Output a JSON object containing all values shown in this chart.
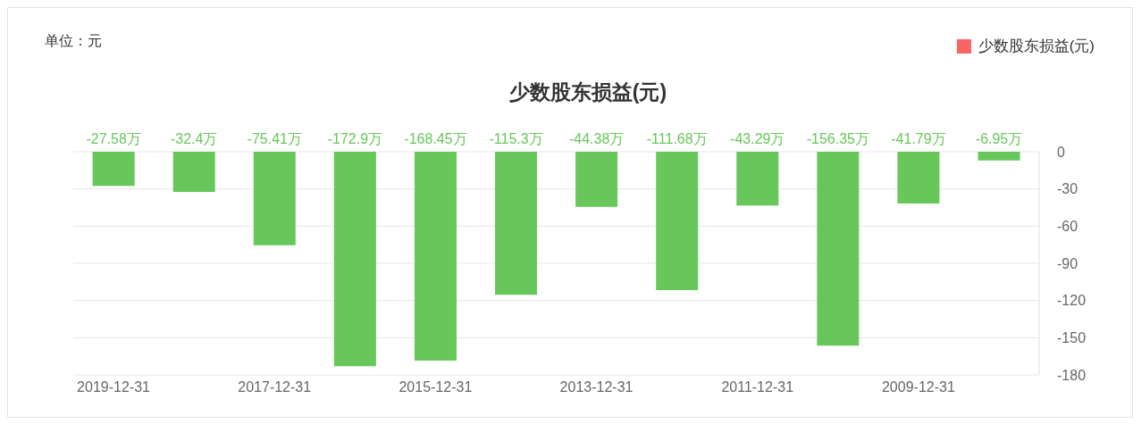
{
  "chart_data": {
    "type": "bar",
    "title": "少数股东损益(元)",
    "annotations": [
      "单位：元"
    ],
    "categories": [
      "2019-12-31",
      null,
      "2017-12-31",
      null,
      "2015-12-31",
      null,
      "2013-12-31",
      null,
      "2011-12-31",
      null,
      "2009-12-31",
      null
    ],
    "series": [
      {
        "name": "少数股东损益(元)",
        "color": "#f96464",
        "colors": [
          "#67c75a",
          "#67c75a",
          "#67c75a",
          "#67c75a",
          "#67c75a",
          "#67c75a",
          "#67c75a",
          "#67c75a",
          "#67c75a",
          "#67c75a",
          "#67c75a",
          "#67c75a"
        ],
        "values": [
          -27.58,
          -32.4,
          -75.41,
          -172.9,
          -168.45,
          -115.3,
          -44.38,
          -111.68,
          -43.29,
          -156.35,
          -41.79,
          -6.95
        ],
        "value_labels": [
          "-27.58万",
          "-32.4万",
          "-75.41万",
          "-172.9万",
          "-168.45万",
          "-115.3万",
          "-44.38万",
          "-111.68万",
          "-43.29万",
          "-156.35万",
          "-41.79万",
          "-6.95万"
        ]
      }
    ],
    "ylim": [
      -180,
      0
    ],
    "yticks": [
      0,
      -30,
      -60,
      -90,
      -120,
      -150,
      -180
    ],
    "grid": "y",
    "legend": "top right"
  }
}
